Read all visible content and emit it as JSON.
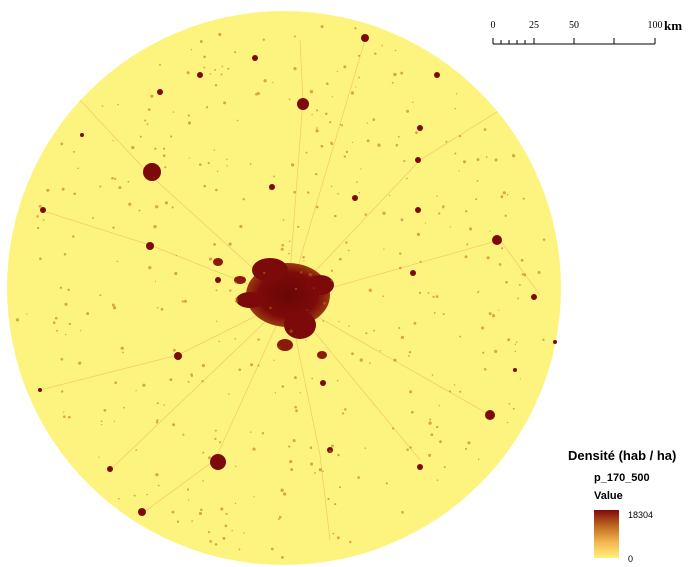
{
  "map": {
    "colors": {
      "background": "#fdf47f",
      "low": "#fff685",
      "mid": "#f0c46a",
      "high": "#b96a20",
      "dense": "#7d0a0a"
    }
  },
  "scale_bar": {
    "ticks": [
      "0",
      "25",
      "50",
      "100"
    ],
    "unit": "km"
  },
  "legend": {
    "title": "Densité (hab / ha)",
    "layer": "p_170_500",
    "field": "Value",
    "max_label": "18304",
    "min_label": "0",
    "ramp_colors": [
      "#7d0a0a",
      "#c06820",
      "#f2b550",
      "#fff27a"
    ]
  }
}
